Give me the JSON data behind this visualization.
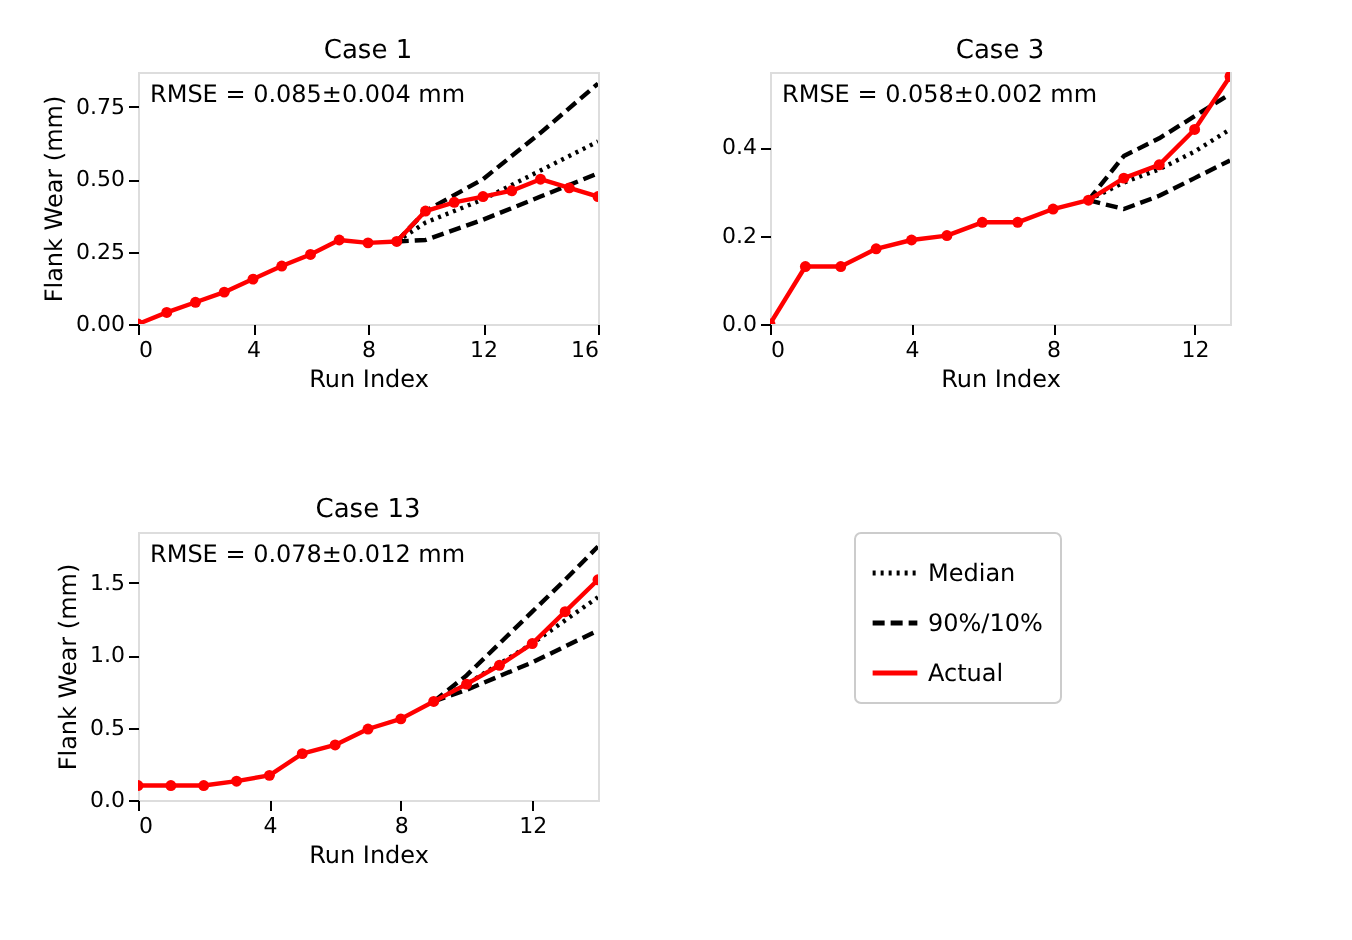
{
  "chart_data": [
    {
      "type": "line",
      "title": "Case 1",
      "xlabel": "Run Index",
      "ylabel": "Flank Wear (mm)",
      "annotations": [
        "RMSE = 0.085±0.004 mm"
      ],
      "xlim": [
        0,
        16
      ],
      "xticks": [
        0,
        4,
        8,
        12,
        16
      ],
      "ylim": [
        0,
        0.87
      ],
      "yticks": [
        {
          "value": 0,
          "label": "0.00"
        },
        0.25,
        {
          "value": 0.5,
          "label": "0.50"
        },
        0.75
      ],
      "grid": false,
      "legend": false,
      "series": [
        {
          "color": "#000000",
          "line_style": "dotted",
          "marker": "none",
          "x": [
            9,
            10,
            12,
            14,
            16
          ],
          "values": [
            0.285,
            0.35,
            0.43,
            0.53,
            0.63
          ]
        },
        {
          "color": "#000000",
          "line_style": "dashed",
          "marker": "none",
          "x": [
            9,
            10,
            12,
            14,
            16
          ],
          "values": [
            0.285,
            0.39,
            0.5,
            0.66,
            0.83
          ]
        },
        {
          "color": "#000000",
          "line_style": "dashed",
          "marker": "none",
          "x": [
            9,
            10,
            12,
            14,
            16
          ],
          "values": [
            0.285,
            0.29,
            0.36,
            0.44,
            0.52
          ]
        },
        {
          "color": "#ff0000",
          "line_style": "solid",
          "marker": "circle",
          "x": [
            0,
            1,
            2,
            3,
            4,
            5,
            6,
            7,
            8,
            9,
            10,
            11,
            12,
            13,
            14,
            15,
            16
          ],
          "values": [
            0.0,
            0.04,
            0.075,
            0.11,
            0.155,
            0.2,
            0.24,
            0.29,
            0.28,
            0.285,
            0.39,
            0.42,
            0.44,
            0.46,
            0.5,
            0.47,
            0.44
          ]
        }
      ]
    },
    {
      "type": "line",
      "title": "Case 3",
      "xlabel": "Run Index",
      "annotations": [
        "RMSE = 0.058±0.002 mm"
      ],
      "xlim": [
        0,
        13
      ],
      "xticks": [
        0,
        4,
        8,
        12
      ],
      "ylim": [
        0,
        0.57
      ],
      "yticks": [
        {
          "value": 0,
          "label": "0.0"
        },
        0.2,
        0.4
      ],
      "grid": false,
      "legend": false,
      "series": [
        {
          "color": "#000000",
          "line_style": "dotted",
          "marker": "none",
          "x": [
            9,
            10,
            11,
            12,
            13
          ],
          "values": [
            0.28,
            0.32,
            0.35,
            0.39,
            0.44
          ]
        },
        {
          "color": "#000000",
          "line_style": "dashed",
          "marker": "none",
          "x": [
            9,
            10,
            11,
            12,
            13
          ],
          "values": [
            0.28,
            0.38,
            0.42,
            0.47,
            0.52
          ]
        },
        {
          "color": "#000000",
          "line_style": "dashed",
          "marker": "none",
          "x": [
            9,
            10,
            11,
            12,
            13
          ],
          "values": [
            0.28,
            0.26,
            0.29,
            0.33,
            0.37
          ]
        },
        {
          "color": "#ff0000",
          "line_style": "solid",
          "marker": "circle",
          "x": [
            0,
            1,
            2,
            3,
            4,
            5,
            6,
            7,
            8,
            9,
            10,
            11,
            12,
            13
          ],
          "values": [
            0.0,
            0.13,
            0.13,
            0.17,
            0.19,
            0.2,
            0.23,
            0.23,
            0.26,
            0.28,
            0.33,
            0.36,
            0.44,
            0.56
          ]
        }
      ]
    },
    {
      "type": "line",
      "title": "Case 13",
      "xlabel": "Run Index",
      "ylabel": "Flank Wear (mm)",
      "annotations": [
        "RMSE = 0.078±0.012 mm"
      ],
      "xlim": [
        0,
        14
      ],
      "xticks": [
        0,
        4,
        8,
        12
      ],
      "ylim": [
        0,
        1.85
      ],
      "yticks": [
        {
          "value": 0,
          "label": "0.0"
        },
        0.5,
        {
          "value": 1,
          "label": "1.0"
        },
        1.5
      ],
      "grid": false,
      "legend": "right",
      "series": [
        {
          "name": "Median",
          "color": "#000000",
          "line_style": "dotted",
          "marker": "none",
          "x": [
            9,
            10,
            12,
            14
          ],
          "values": [
            0.68,
            0.8,
            1.08,
            1.4
          ]
        },
        {
          "name": "90%/10%",
          "color": "#000000",
          "line_style": "dashed",
          "marker": "none",
          "x": [
            9,
            10,
            11,
            12,
            13,
            14
          ],
          "values": [
            0.68,
            0.86,
            1.08,
            1.3,
            1.52,
            1.75
          ]
        },
        {
          "color": "#000000",
          "line_style": "dashed",
          "marker": "none",
          "x": [
            9,
            10,
            12,
            14
          ],
          "values": [
            0.68,
            0.76,
            0.95,
            1.17
          ]
        },
        {
          "name": "Actual",
          "color": "#ff0000",
          "line_style": "solid",
          "marker": "circle",
          "x": [
            0,
            1,
            2,
            3,
            4,
            5,
            6,
            7,
            8,
            9,
            10,
            11,
            12,
            13,
            14
          ],
          "values": [
            0.1,
            0.1,
            0.1,
            0.13,
            0.17,
            0.32,
            0.38,
            0.49,
            0.56,
            0.68,
            0.8,
            0.93,
            1.08,
            1.3,
            1.52
          ]
        }
      ]
    }
  ]
}
